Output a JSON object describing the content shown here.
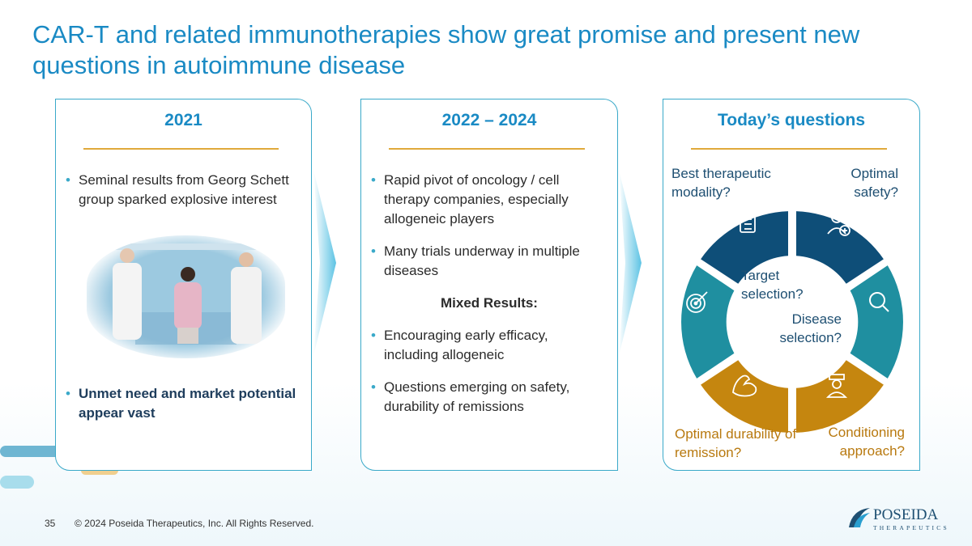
{
  "title": "CAR-T and related immunotherapies show great promise and present new questions in autoimmune disease",
  "panels": {
    "p2021": {
      "heading": "2021",
      "bullet1": "Seminal results from Georg Schett group sparked explosive interest",
      "bullet2": "Unmet need and market potential appear vast"
    },
    "p2022": {
      "heading": "2022 – 2024",
      "bullet1": "Rapid pivot of oncology / cell therapy companies, especially allogeneic players",
      "bullet2": "Many trials underway in multiple diseases",
      "subheading": "Mixed Results:",
      "bullet3": "Encouraging early efficacy, including allogeneic",
      "bullet4": "Questions emerging on safety, durability of remissions"
    },
    "today": {
      "heading": "Today’s questions",
      "q_modality": "Best therapeutic modality?",
      "q_safety": "Optimal safety?",
      "q_durability": "Optimal durability of remission?",
      "q_conditioning": "Conditioning approach?",
      "q_target": "Target selection?",
      "q_disease": "Disease selection?"
    }
  },
  "colors": {
    "title": "#1a8ac4",
    "navy": "#0e4e78",
    "teal": "#1f8fa0",
    "gold": "#c5860f"
  },
  "icons": [
    "checklist-icon",
    "person-plus-icon",
    "target-icon",
    "magnifier-icon",
    "muscle-arm-icon",
    "nurse-icon"
  ],
  "footer": {
    "page_number": "35",
    "copyright": "© 2024 Poseida Therapeutics, Inc. All Rights Reserved."
  },
  "logo": {
    "name": "POSEIDA",
    "sub": "THERAPEUTICS"
  }
}
